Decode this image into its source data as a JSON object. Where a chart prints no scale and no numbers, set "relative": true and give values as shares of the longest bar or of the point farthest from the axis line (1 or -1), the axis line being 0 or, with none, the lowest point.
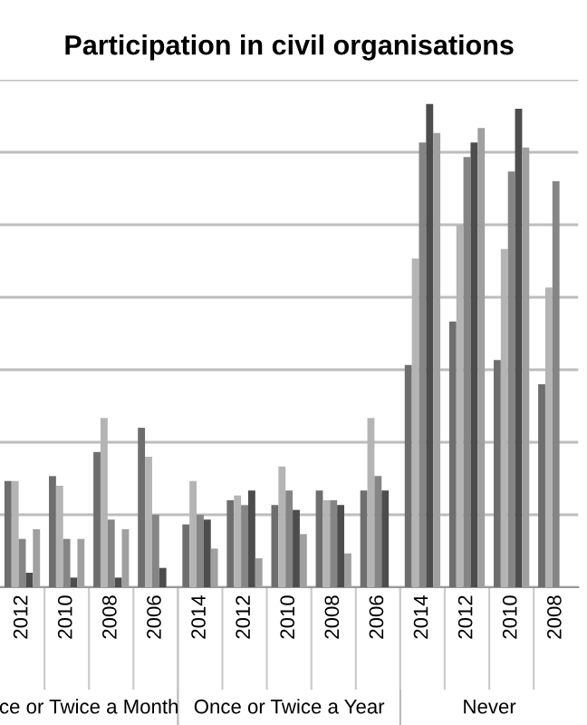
{
  "chart_data": {
    "type": "bar",
    "title": "Participation in civil organisations",
    "relative": true,
    "grid": "y",
    "categories": [
      "2012",
      "2010",
      "2008",
      "2006",
      "2014",
      "2012",
      "2010",
      "2008",
      "2006",
      "2014",
      "2012",
      "2010",
      "2008"
    ],
    "series": [
      {
        "color": "#6e6e6e",
        "values": [
          0.22,
          0.23,
          0.28,
          0.33,
          0.13,
          0.18,
          0.17,
          0.2,
          0.2,
          0.46,
          0.55,
          0.47,
          0.42
        ]
      },
      {
        "color": "#b4b4b4",
        "values": [
          0.22,
          0.21,
          0.35,
          0.27,
          0.22,
          0.19,
          0.25,
          0.18,
          0.35,
          0.68,
          0.75,
          0.7,
          0.62
        ]
      },
      {
        "color": "#858585",
        "values": [
          0.1,
          0.1,
          0.14,
          0.15,
          0.15,
          0.17,
          0.2,
          0.18,
          0.23,
          0.92,
          0.89,
          0.86,
          0.84
        ]
      },
      {
        "color": "#4d4d4d",
        "values": [
          0.03,
          0.02,
          0.02,
          0.04,
          0.14,
          0.2,
          0.16,
          0.17,
          0.2,
          1,
          0.92,
          0.99,
          null
        ]
      },
      {
        "color": "#a0a0a0",
        "values": [
          0.12,
          0.1,
          0.12,
          null,
          0.08,
          0.06,
          0.11,
          0.07,
          null,
          0.94,
          0.95,
          0.91,
          null
        ]
      }
    ],
    "annotations": [
      "ce or Twice a Month",
      "Once or Twice a Year",
      "Never"
    ]
  }
}
